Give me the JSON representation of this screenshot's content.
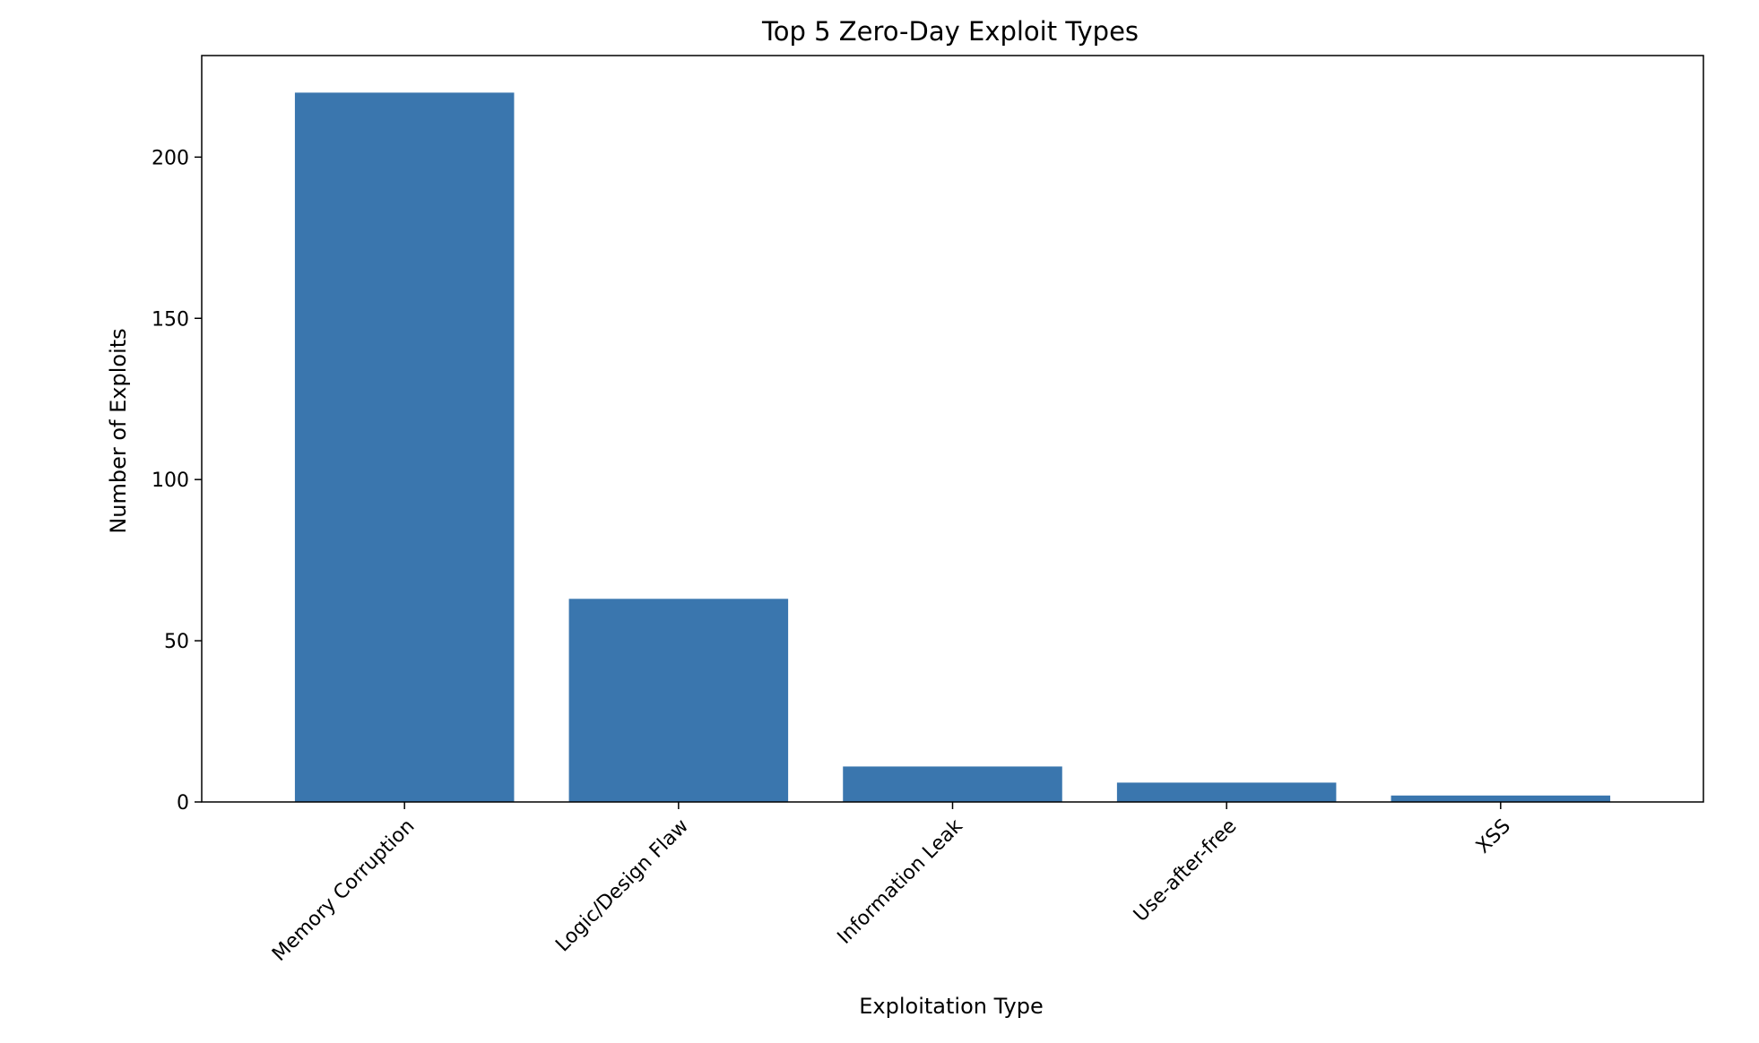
{
  "chart_data": {
    "type": "bar",
    "title": "Top 5 Zero-Day Exploit Types",
    "xlabel": "Exploitation Type",
    "ylabel": "Number of Exploits",
    "categories": [
      "Memory Corruption",
      "Logic/Design Flaw",
      "Information Leak",
      "Use-after-free",
      "XSS"
    ],
    "values": [
      220,
      63,
      11,
      6,
      2
    ],
    "ylim": [
      0,
      231.5
    ],
    "yticks": [
      0,
      50,
      100,
      150,
      200
    ],
    "grid": false,
    "legend": "none",
    "colors": {
      "bar": "#3a76ae",
      "axis": "#000000",
      "background": "#ffffff"
    }
  }
}
